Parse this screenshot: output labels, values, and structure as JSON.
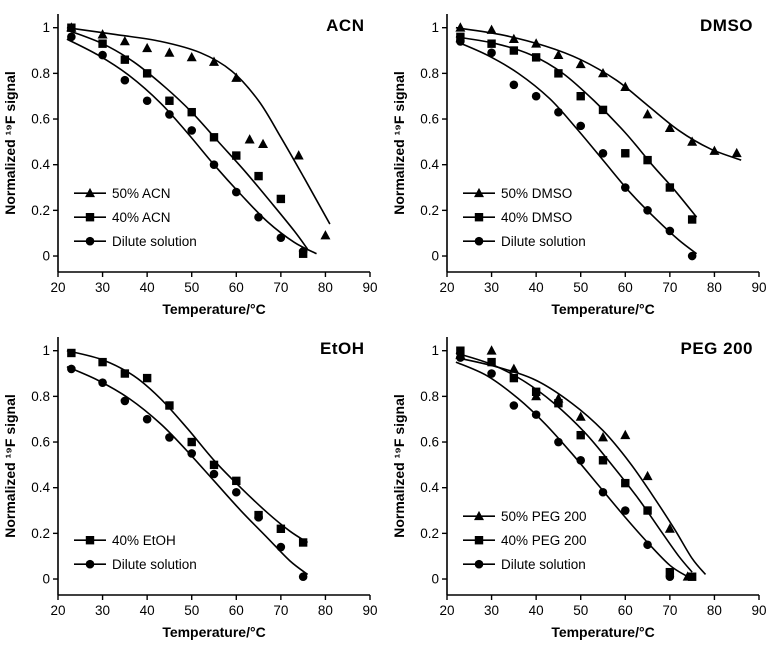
{
  "page": {
    "background": "#ffffff",
    "ink_color": "#000000"
  },
  "chart_data": [
    {
      "type": "scatter",
      "title": "ACN",
      "xlabel": "Temperature/°C",
      "ylabel": "Normalized ¹⁹F signal",
      "xlim": [
        20,
        90
      ],
      "ylim": [
        0,
        1
      ],
      "xticks": [
        20,
        30,
        40,
        50,
        60,
        70,
        80,
        90
      ],
      "yticks": [
        0,
        0.2,
        0.4,
        0.6,
        0.8,
        1
      ],
      "grid": false,
      "legend_position": "bottom-left",
      "series": [
        {
          "name": "50% ACN",
          "marker": "triangle",
          "color": "#000000",
          "points": [
            [
              23,
              1.0
            ],
            [
              30,
              0.97
            ],
            [
              35,
              0.94
            ],
            [
              40,
              0.91
            ],
            [
              45,
              0.89
            ],
            [
              50,
              0.87
            ],
            [
              55,
              0.85
            ],
            [
              60,
              0.78
            ],
            [
              63,
              0.51
            ],
            [
              66,
              0.49
            ],
            [
              74,
              0.44
            ],
            [
              80,
              0.09
            ]
          ],
          "fit_curve": [
            [
              22,
              1.0
            ],
            [
              33,
              0.97
            ],
            [
              43,
              0.94
            ],
            [
              52,
              0.89
            ],
            [
              59,
              0.81
            ],
            [
              65,
              0.68
            ],
            [
              70,
              0.52
            ],
            [
              75,
              0.35
            ],
            [
              79,
              0.21
            ],
            [
              81,
              0.14
            ]
          ]
        },
        {
          "name": "40% ACN",
          "marker": "square",
          "color": "#000000",
          "points": [
            [
              23,
              1.0
            ],
            [
              30,
              0.93
            ],
            [
              35,
              0.86
            ],
            [
              40,
              0.8
            ],
            [
              45,
              0.68
            ],
            [
              50,
              0.63
            ],
            [
              55,
              0.52
            ],
            [
              60,
              0.44
            ],
            [
              65,
              0.35
            ],
            [
              70,
              0.25
            ],
            [
              75,
              0.01
            ]
          ],
          "fit_curve": [
            [
              22,
              0.99
            ],
            [
              30,
              0.93
            ],
            [
              37,
              0.85
            ],
            [
              44,
              0.74
            ],
            [
              50,
              0.63
            ],
            [
              56,
              0.5
            ],
            [
              62,
              0.37
            ],
            [
              68,
              0.23
            ],
            [
              73,
              0.11
            ],
            [
              76,
              0.03
            ]
          ]
        },
        {
          "name": "Dilute solution",
          "marker": "circle",
          "color": "#000000",
          "points": [
            [
              23,
              0.96
            ],
            [
              30,
              0.88
            ],
            [
              35,
              0.77
            ],
            [
              40,
              0.68
            ],
            [
              45,
              0.62
            ],
            [
              50,
              0.55
            ],
            [
              55,
              0.4
            ],
            [
              60,
              0.28
            ],
            [
              65,
              0.17
            ],
            [
              70,
              0.08
            ],
            [
              75,
              0.02
            ]
          ],
          "fit_curve": [
            [
              22,
              0.95
            ],
            [
              29,
              0.88
            ],
            [
              36,
              0.79
            ],
            [
              43,
              0.67
            ],
            [
              49,
              0.54
            ],
            [
              55,
              0.4
            ],
            [
              61,
              0.27
            ],
            [
              67,
              0.15
            ],
            [
              73,
              0.06
            ],
            [
              78,
              0.01
            ]
          ]
        }
      ]
    },
    {
      "type": "scatter",
      "title": "DMSO",
      "xlabel": "Temperature/°C",
      "ylabel": "Normalized ¹⁹F signal",
      "xlim": [
        20,
        90
      ],
      "ylim": [
        0,
        1
      ],
      "xticks": [
        20,
        30,
        40,
        50,
        60,
        70,
        80,
        90
      ],
      "yticks": [
        0,
        0.2,
        0.4,
        0.6,
        0.8,
        1
      ],
      "grid": false,
      "legend_position": "bottom-left",
      "series": [
        {
          "name": "50% DMSO",
          "marker": "triangle",
          "color": "#000000",
          "points": [
            [
              23,
              1.0
            ],
            [
              30,
              0.99
            ],
            [
              35,
              0.95
            ],
            [
              40,
              0.93
            ],
            [
              45,
              0.88
            ],
            [
              50,
              0.84
            ],
            [
              55,
              0.8
            ],
            [
              60,
              0.74
            ],
            [
              65,
              0.62
            ],
            [
              70,
              0.56
            ],
            [
              75,
              0.5
            ],
            [
              80,
              0.46
            ],
            [
              85,
              0.45
            ]
          ],
          "fit_curve": [
            [
              22,
              1.0
            ],
            [
              32,
              0.97
            ],
            [
              42,
              0.92
            ],
            [
              50,
              0.86
            ],
            [
              58,
              0.77
            ],
            [
              65,
              0.66
            ],
            [
              72,
              0.55
            ],
            [
              79,
              0.47
            ],
            [
              86,
              0.42
            ]
          ]
        },
        {
          "name": "40% DMSO",
          "marker": "square",
          "color": "#000000",
          "points": [
            [
              23,
              0.96
            ],
            [
              30,
              0.93
            ],
            [
              35,
              0.9
            ],
            [
              40,
              0.87
            ],
            [
              45,
              0.8
            ],
            [
              50,
              0.7
            ],
            [
              55,
              0.64
            ],
            [
              60,
              0.45
            ],
            [
              65,
              0.42
            ],
            [
              70,
              0.3
            ],
            [
              75,
              0.16
            ]
          ],
          "fit_curve": [
            [
              22,
              0.96
            ],
            [
              31,
              0.93
            ],
            [
              39,
              0.88
            ],
            [
              46,
              0.8
            ],
            [
              53,
              0.68
            ],
            [
              60,
              0.54
            ],
            [
              66,
              0.4
            ],
            [
              71,
              0.29
            ],
            [
              76,
              0.17
            ]
          ]
        },
        {
          "name": "Dilute solution",
          "marker": "circle",
          "color": "#000000",
          "points": [
            [
              23,
              0.94
            ],
            [
              30,
              0.89
            ],
            [
              35,
              0.75
            ],
            [
              40,
              0.7
            ],
            [
              45,
              0.63
            ],
            [
              50,
              0.57
            ],
            [
              55,
              0.45
            ],
            [
              60,
              0.3
            ],
            [
              65,
              0.2
            ],
            [
              70,
              0.11
            ],
            [
              75,
              0.0
            ]
          ],
          "fit_curve": [
            [
              22,
              0.94
            ],
            [
              29,
              0.88
            ],
            [
              36,
              0.8
            ],
            [
              43,
              0.69
            ],
            [
              49,
              0.56
            ],
            [
              55,
              0.42
            ],
            [
              61,
              0.28
            ],
            [
              67,
              0.16
            ],
            [
              72,
              0.07
            ],
            [
              76,
              0.01
            ]
          ]
        }
      ]
    },
    {
      "type": "scatter",
      "title": "EtOH",
      "xlabel": "Temperature/°C",
      "ylabel": "Normalized ¹⁹F signal",
      "xlim": [
        20,
        90
      ],
      "ylim": [
        0,
        1
      ],
      "xticks": [
        20,
        30,
        40,
        50,
        60,
        70,
        80,
        90
      ],
      "yticks": [
        0,
        0.2,
        0.4,
        0.6,
        0.8,
        1
      ],
      "grid": false,
      "legend_position": "bottom-left",
      "series": [
        {
          "name": "40% EtOH",
          "marker": "square",
          "color": "#000000",
          "points": [
            [
              23,
              0.99
            ],
            [
              30,
              0.95
            ],
            [
              35,
              0.9
            ],
            [
              40,
              0.88
            ],
            [
              45,
              0.76
            ],
            [
              50,
              0.6
            ],
            [
              55,
              0.5
            ],
            [
              60,
              0.43
            ],
            [
              65,
              0.28
            ],
            [
              70,
              0.22
            ],
            [
              75,
              0.16
            ]
          ],
          "fit_curve": [
            [
              22,
              1.0
            ],
            [
              30,
              0.96
            ],
            [
              37,
              0.89
            ],
            [
              43,
              0.79
            ],
            [
              49,
              0.66
            ],
            [
              55,
              0.52
            ],
            [
              61,
              0.4
            ],
            [
              67,
              0.29
            ],
            [
              72,
              0.21
            ],
            [
              76,
              0.16
            ]
          ]
        },
        {
          "name": "Dilute solution",
          "marker": "circle",
          "color": "#000000",
          "points": [
            [
              23,
              0.92
            ],
            [
              30,
              0.86
            ],
            [
              35,
              0.78
            ],
            [
              40,
              0.7
            ],
            [
              45,
              0.62
            ],
            [
              50,
              0.55
            ],
            [
              55,
              0.46
            ],
            [
              60,
              0.38
            ],
            [
              65,
              0.27
            ],
            [
              70,
              0.14
            ],
            [
              75,
              0.01
            ]
          ],
          "fit_curve": [
            [
              22,
              0.93
            ],
            [
              29,
              0.87
            ],
            [
              36,
              0.79
            ],
            [
              43,
              0.68
            ],
            [
              49,
              0.56
            ],
            [
              55,
              0.43
            ],
            [
              61,
              0.3
            ],
            [
              67,
              0.18
            ],
            [
              72,
              0.08
            ],
            [
              76,
              0.02
            ]
          ]
        }
      ]
    },
    {
      "type": "scatter",
      "title": "PEG 200",
      "xlabel": "Temperature/°C",
      "ylabel": "Normalized ¹⁹F signal",
      "xlim": [
        20,
        90
      ],
      "ylim": [
        0,
        1
      ],
      "xticks": [
        20,
        30,
        40,
        50,
        60,
        70,
        80,
        90
      ],
      "yticks": [
        0,
        0.2,
        0.4,
        0.6,
        0.8,
        1
      ],
      "grid": false,
      "legend_position": "bottom-left",
      "series": [
        {
          "name": "50% PEG 200",
          "marker": "triangle",
          "color": "#000000",
          "points": [
            [
              23,
              0.98
            ],
            [
              30,
              1.0
            ],
            [
              35,
              0.92
            ],
            [
              40,
              0.8
            ],
            [
              45,
              0.79
            ],
            [
              50,
              0.71
            ],
            [
              55,
              0.62
            ],
            [
              60,
              0.63
            ],
            [
              65,
              0.45
            ],
            [
              70,
              0.22
            ],
            [
              74,
              0.01
            ]
          ],
          "fit_curve": [
            [
              22,
              0.97
            ],
            [
              31,
              0.93
            ],
            [
              40,
              0.87
            ],
            [
              48,
              0.77
            ],
            [
              55,
              0.65
            ],
            [
              61,
              0.51
            ],
            [
              66,
              0.37
            ],
            [
              71,
              0.22
            ],
            [
              75,
              0.09
            ],
            [
              78,
              0.02
            ]
          ]
        },
        {
          "name": "40% PEG 200",
          "marker": "square",
          "color": "#000000",
          "points": [
            [
              23,
              1.0
            ],
            [
              30,
              0.95
            ],
            [
              35,
              0.88
            ],
            [
              40,
              0.82
            ],
            [
              45,
              0.77
            ],
            [
              50,
              0.63
            ],
            [
              55,
              0.52
            ],
            [
              60,
              0.42
            ],
            [
              65,
              0.3
            ],
            [
              70,
              0.03
            ],
            [
              75,
              0.01
            ]
          ],
          "fit_curve": [
            [
              22,
              0.99
            ],
            [
              30,
              0.94
            ],
            [
              37,
              0.87
            ],
            [
              44,
              0.77
            ],
            [
              51,
              0.64
            ],
            [
              57,
              0.5
            ],
            [
              63,
              0.35
            ],
            [
              68,
              0.21
            ],
            [
              72,
              0.1
            ],
            [
              75,
              0.03
            ]
          ]
        },
        {
          "name": "Dilute solution",
          "marker": "circle",
          "color": "#000000",
          "points": [
            [
              23,
              0.97
            ],
            [
              30,
              0.9
            ],
            [
              35,
              0.76
            ],
            [
              40,
              0.72
            ],
            [
              45,
              0.6
            ],
            [
              50,
              0.52
            ],
            [
              55,
              0.38
            ],
            [
              60,
              0.3
            ],
            [
              65,
              0.15
            ],
            [
              70,
              0.01
            ]
          ],
          "fit_curve": [
            [
              22,
              0.95
            ],
            [
              29,
              0.89
            ],
            [
              36,
              0.79
            ],
            [
              42,
              0.68
            ],
            [
              48,
              0.55
            ],
            [
              54,
              0.41
            ],
            [
              60,
              0.27
            ],
            [
              65,
              0.16
            ],
            [
              70,
              0.06
            ],
            [
              74,
              0.01
            ]
          ]
        }
      ]
    }
  ]
}
